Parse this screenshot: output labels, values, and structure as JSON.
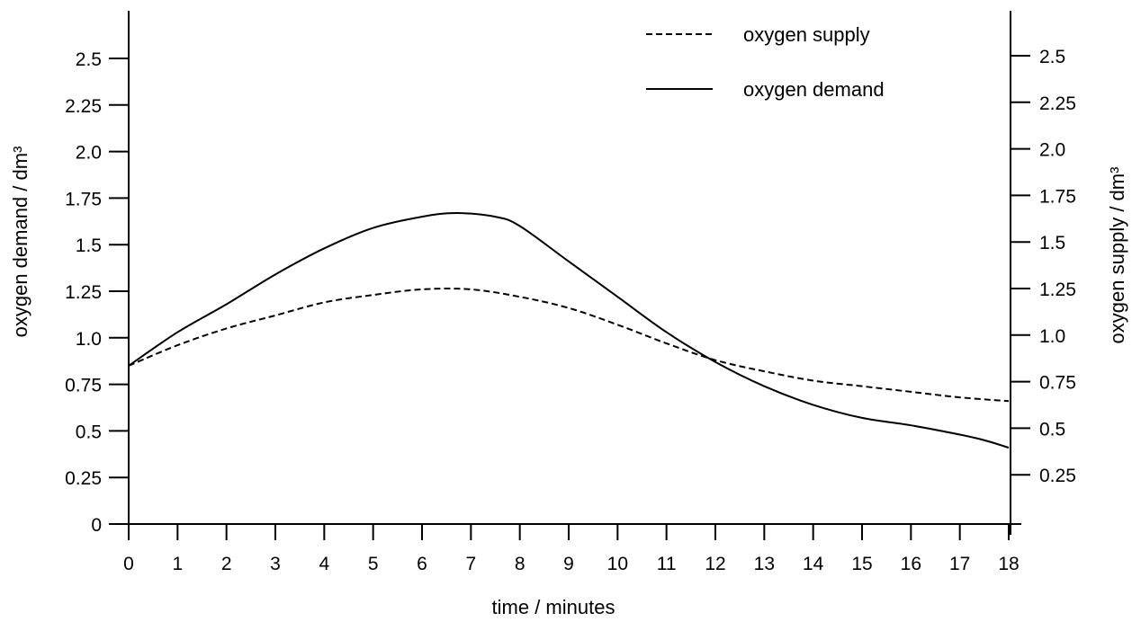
{
  "chart_data": {
    "type": "line",
    "xlabel": "time / minutes",
    "ylabel_left": "oxygen demand / dm³",
    "ylabel_right": "oxygen supply / dm³",
    "xlim": [
      0,
      18
    ],
    "ylim": [
      0,
      2.75
    ],
    "x_ticks": [
      0,
      1,
      2,
      3,
      4,
      5,
      6,
      7,
      8,
      9,
      10,
      11,
      12,
      13,
      14,
      15,
      16,
      17,
      18
    ],
    "y_ticks_left": [
      {
        "value": 0,
        "label": "0"
      },
      {
        "value": 0.25,
        "label": "0.25"
      },
      {
        "value": 0.5,
        "label": "0.5"
      },
      {
        "value": 0.75,
        "label": "0.75"
      },
      {
        "value": 1.0,
        "label": "1.0"
      },
      {
        "value": 1.25,
        "label": "1.25"
      },
      {
        "value": 1.5,
        "label": "1.5"
      },
      {
        "value": 1.75,
        "label": "1.75"
      },
      {
        "value": 2.0,
        "label": "2.0"
      },
      {
        "value": 2.25,
        "label": "2.25"
      },
      {
        "value": 2.5,
        "label": "2.5"
      }
    ],
    "y_ticks_right": [
      {
        "value": 0.25,
        "label": "0.25"
      },
      {
        "value": 0.5,
        "label": "0.5"
      },
      {
        "value": 0.75,
        "label": "0.75"
      },
      {
        "value": 1.0,
        "label": "1.0"
      },
      {
        "value": 1.25,
        "label": "1.25"
      },
      {
        "value": 1.5,
        "label": "1.5"
      },
      {
        "value": 1.75,
        "label": "1.75"
      },
      {
        "value": 2.0,
        "label": "2.0"
      },
      {
        "value": 2.25,
        "label": "2.25"
      },
      {
        "value": 2.5,
        "label": "2.5"
      }
    ],
    "grid": false,
    "legend_position": "top-right",
    "series": [
      {
        "name": "oxygen supply",
        "style": "dashed",
        "color": "#000000",
        "points": [
          [
            0,
            0.85
          ],
          [
            1,
            0.96
          ],
          [
            2,
            1.05
          ],
          [
            3,
            1.12
          ],
          [
            4,
            1.19
          ],
          [
            5,
            1.23
          ],
          [
            6,
            1.26
          ],
          [
            7,
            1.26
          ],
          [
            8,
            1.22
          ],
          [
            9,
            1.16
          ],
          [
            10,
            1.07
          ],
          [
            11,
            0.97
          ],
          [
            12,
            0.88
          ],
          [
            13,
            0.82
          ],
          [
            14,
            0.77
          ],
          [
            15,
            0.74
          ],
          [
            16,
            0.71
          ],
          [
            17,
            0.68
          ],
          [
            18,
            0.66
          ]
        ]
      },
      {
        "name": "oxygen demand",
        "style": "solid",
        "color": "#000000",
        "points": [
          [
            0,
            0.85
          ],
          [
            1,
            1.03
          ],
          [
            2,
            1.18
          ],
          [
            3,
            1.34
          ],
          [
            4,
            1.48
          ],
          [
            5,
            1.59
          ],
          [
            6,
            1.65
          ],
          [
            6.7,
            1.67
          ],
          [
            7.5,
            1.65
          ],
          [
            8,
            1.6
          ],
          [
            9,
            1.41
          ],
          [
            10,
            1.22
          ],
          [
            11,
            1.03
          ],
          [
            12,
            0.87
          ],
          [
            13,
            0.74
          ],
          [
            14,
            0.64
          ],
          [
            15,
            0.57
          ],
          [
            16,
            0.53
          ],
          [
            17,
            0.48
          ],
          [
            17.5,
            0.45
          ],
          [
            18,
            0.41
          ]
        ]
      }
    ]
  }
}
